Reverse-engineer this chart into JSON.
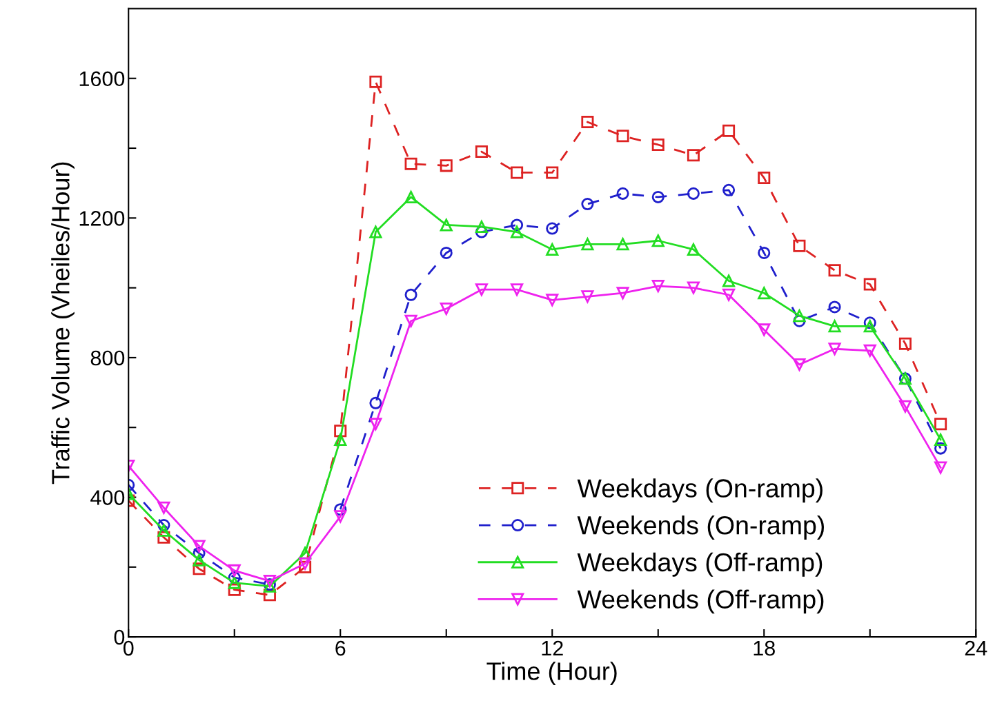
{
  "chart_data": {
    "type": "line",
    "xlabel": "Time (Hour)",
    "ylabel": "Traffic Volume (Vheiles/Hour)",
    "x": [
      0,
      1,
      2,
      3,
      4,
      5,
      6,
      7,
      8,
      9,
      10,
      11,
      12,
      13,
      14,
      15,
      16,
      17,
      18,
      19,
      20,
      21,
      22,
      23
    ],
    "series": [
      {
        "name": "Weekdays (On-ramp)",
        "color": "#dd2222",
        "marker": "square",
        "line_style": "dashed",
        "values": [
          390,
          285,
          195,
          135,
          120,
          200,
          590,
          1590,
          1355,
          1350,
          1390,
          1330,
          1330,
          1475,
          1435,
          1410,
          1380,
          1450,
          1315,
          1120,
          1050,
          1010,
          840,
          610
        ]
      },
      {
        "name": "Weekends (On-ramp)",
        "color": "#1f1fcc",
        "marker": "circle",
        "line_style": "dashed",
        "values": [
          435,
          320,
          240,
          170,
          150,
          null,
          365,
          670,
          980,
          1100,
          1160,
          1180,
          1170,
          1240,
          1270,
          1260,
          1270,
          1280,
          1100,
          905,
          945,
          900,
          740,
          540
        ]
      },
      {
        "name": "Weekdays (Off-ramp)",
        "color": "#22dd22",
        "marker": "triangle",
        "line_style": "solid",
        "values": [
          410,
          305,
          220,
          155,
          145,
          240,
          565,
          1160,
          1260,
          1180,
          1175,
          1160,
          1110,
          1125,
          1125,
          1135,
          1110,
          1020,
          985,
          920,
          890,
          890,
          740,
          565
        ]
      },
      {
        "name": "Weekends (Off-ramp)",
        "color": "#ee22ee",
        "marker": "triangle_down",
        "line_style": "solid",
        "values": [
          490,
          370,
          260,
          190,
          160,
          210,
          345,
          610,
          905,
          940,
          995,
          995,
          965,
          975,
          985,
          1005,
          1000,
          980,
          880,
          780,
          825,
          820,
          660,
          485
        ]
      }
    ],
    "xlim": [
      0,
      24
    ],
    "ylim": [
      0,
      1800
    ],
    "xticks": [
      0,
      {
        "value": 3,
        "label": null
      },
      6,
      {
        "value": 9,
        "label": null
      },
      12,
      {
        "value": 15,
        "label": null
      },
      18,
      {
        "value": 21,
        "label": null
      },
      24
    ],
    "yticks": [
      0,
      {
        "value": 200,
        "label": null
      },
      400,
      {
        "value": 600,
        "label": null
      },
      800,
      {
        "value": 1000,
        "label": null
      },
      1200,
      {
        "value": 1400,
        "label": null
      },
      1600
    ],
    "grid": false,
    "legend": "bottom right"
  }
}
